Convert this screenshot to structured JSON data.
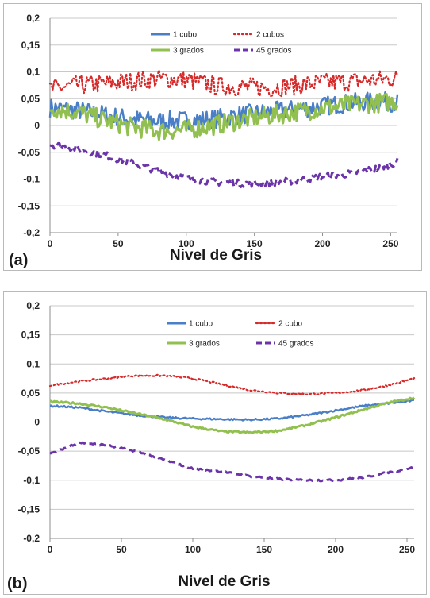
{
  "colors": {
    "1 cubo": "#4a7fc8",
    "2 cubos": "#d62a2a",
    "3 grados": "#92c050",
    "45 grados": "#6b34a8"
  },
  "chart_data": [
    {
      "type": "line",
      "panel_label": "(a)",
      "xlabel": "Nivel de Gris",
      "ylabel": "",
      "xlim": [
        0,
        255
      ],
      "ylim": [
        -0.2,
        0.2
      ],
      "x_ticks": [
        "0",
        "50",
        "100",
        "150",
        "200",
        "250"
      ],
      "y_ticks": [
        "0,2",
        "0,15",
        "0,1",
        "0,05",
        "0",
        "-0,05",
        "-0,1",
        "-0,15",
        "-0,2"
      ],
      "grid": "horizontal",
      "legend_position": "top-center",
      "x": [
        0,
        20,
        40,
        60,
        80,
        100,
        120,
        140,
        160,
        180,
        200,
        220,
        240,
        255
      ],
      "series": [
        {
          "name": "1 cubo",
          "style": "solid",
          "noise": "high",
          "values": [
            0.033,
            0.028,
            0.02,
            0.012,
            0.008,
            0.01,
            0.012,
            0.02,
            0.025,
            0.03,
            0.036,
            0.042,
            0.045,
            0.043
          ]
        },
        {
          "name": "2 cubos",
          "style": "dotted",
          "noise": "high",
          "values": [
            0.068,
            0.075,
            0.078,
            0.083,
            0.087,
            0.085,
            0.075,
            0.072,
            0.07,
            0.075,
            0.08,
            0.082,
            0.085,
            0.088
          ]
        },
        {
          "name": "3 grados",
          "style": "solid",
          "noise": "high",
          "values": [
            0.033,
            0.025,
            0.01,
            -0.003,
            -0.01,
            -0.008,
            0.0,
            0.01,
            0.018,
            0.025,
            0.032,
            0.038,
            0.042,
            0.045
          ]
        },
        {
          "name": "45 grados",
          "style": "dashed",
          "noise": "medium",
          "values": [
            -0.035,
            -0.043,
            -0.055,
            -0.07,
            -0.085,
            -0.098,
            -0.105,
            -0.108,
            -0.107,
            -0.103,
            -0.095,
            -0.09,
            -0.08,
            -0.068
          ]
        }
      ]
    },
    {
      "type": "line",
      "panel_label": "(b)",
      "xlabel": "Nivel de Gris",
      "ylabel": "",
      "xlim": [
        0,
        255
      ],
      "ylim": [
        -0.2,
        0.2
      ],
      "x_ticks": [
        "0",
        "50",
        "100",
        "150",
        "200",
        "250"
      ],
      "y_ticks": [
        "0,2",
        "0,15",
        "0,1",
        "0,05",
        "0",
        "-0,05",
        "-0,1",
        "-0,15",
        "-0,2"
      ],
      "grid": "horizontal",
      "legend_position": "top-center",
      "x": [
        0,
        20,
        40,
        60,
        80,
        100,
        120,
        140,
        160,
        180,
        200,
        220,
        240,
        255
      ],
      "series": [
        {
          "name": "1 cubo",
          "style": "solid",
          "noise": "low",
          "values": [
            0.028,
            0.025,
            0.018,
            0.012,
            0.008,
            0.006,
            0.005,
            0.004,
            0.006,
            0.012,
            0.02,
            0.028,
            0.033,
            0.037
          ]
        },
        {
          "name": "2 cubo",
          "style": "dotted",
          "noise": "low",
          "values": [
            0.063,
            0.07,
            0.075,
            0.08,
            0.08,
            0.075,
            0.065,
            0.055,
            0.05,
            0.048,
            0.05,
            0.055,
            0.065,
            0.075
          ]
        },
        {
          "name": "3 grados",
          "style": "solid",
          "noise": "low",
          "values": [
            0.035,
            0.032,
            0.025,
            0.015,
            0.005,
            -0.008,
            -0.016,
            -0.018,
            -0.015,
            -0.005,
            0.008,
            0.022,
            0.035,
            0.042
          ]
        },
        {
          "name": "45 grados",
          "style": "dashed",
          "noise": "low",
          "values": [
            -0.055,
            -0.035,
            -0.04,
            -0.05,
            -0.065,
            -0.08,
            -0.085,
            -0.093,
            -0.098,
            -0.1,
            -0.1,
            -0.095,
            -0.085,
            -0.078
          ]
        }
      ]
    }
  ]
}
